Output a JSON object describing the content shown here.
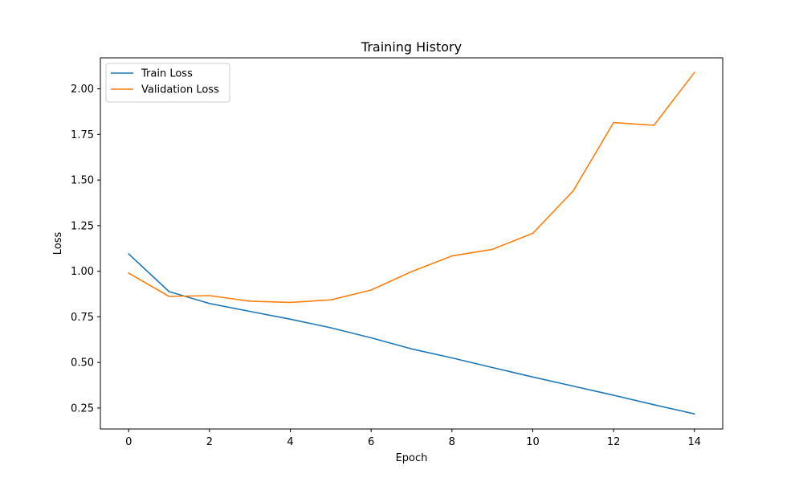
{
  "chart_data": {
    "type": "line",
    "title": "Training History",
    "xlabel": "Epoch",
    "ylabel": "Loss",
    "x": [
      0,
      1,
      2,
      3,
      4,
      5,
      6,
      7,
      8,
      9,
      10,
      11,
      12,
      13,
      14
    ],
    "xlim": [
      -0.7,
      14.7
    ],
    "ylim": [
      0.135,
      2.17
    ],
    "xticks": [
      0,
      2,
      4,
      6,
      8,
      10,
      12,
      14
    ],
    "yticks": [
      0.25,
      0.5,
      0.75,
      1.0,
      1.25,
      1.5,
      1.75,
      2.0
    ],
    "ytick_labels": [
      "0.25",
      "0.50",
      "0.75",
      "1.00",
      "1.25",
      "1.50",
      "1.75",
      "2.00"
    ],
    "grid": false,
    "legend_position": "top-left",
    "series": [
      {
        "name": "Train Loss",
        "color": "#1f77b4",
        "values": [
          1.095,
          0.888,
          0.823,
          0.78,
          0.737,
          0.69,
          0.635,
          0.574,
          0.525,
          0.472,
          0.42,
          0.37,
          0.32,
          0.268,
          0.218
        ]
      },
      {
        "name": "Validation Loss",
        "color": "#ff7f0e",
        "values": [
          0.99,
          0.862,
          0.866,
          0.836,
          0.829,
          0.843,
          0.897,
          0.998,
          1.084,
          1.12,
          1.208,
          1.44,
          1.815,
          1.8,
          2.09
        ]
      }
    ]
  }
}
